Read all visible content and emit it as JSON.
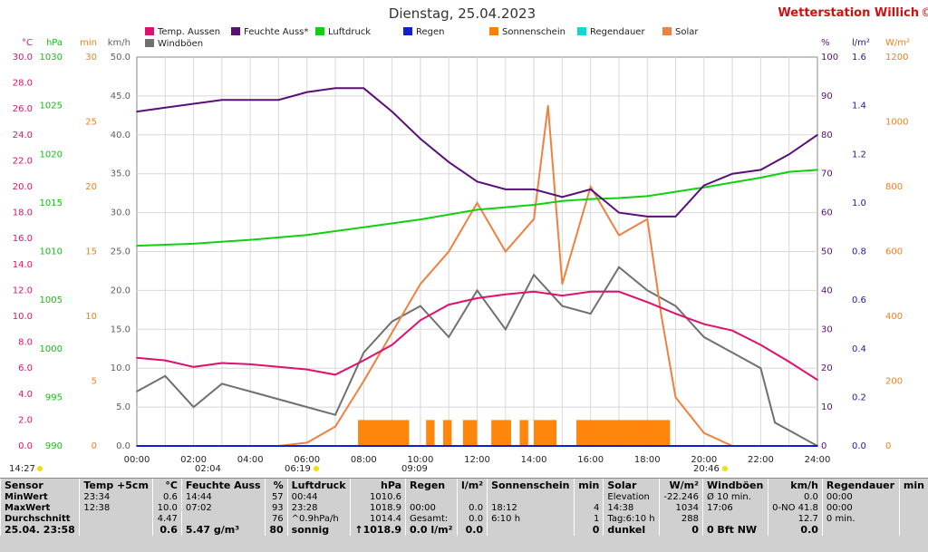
{
  "header": {
    "date_title": "Dienstag, 25.04.2023",
    "station_name": "Wetterstation Willich",
    "station_suffix": "©"
  },
  "axes": {
    "left": [
      {
        "unit": "°C",
        "color": "#e0106e",
        "ticks": [
          "30.0",
          "28.0",
          "26.0",
          "24.0",
          "22.0",
          "20.0",
          "18.0",
          "16.0",
          "14.0",
          "12.0",
          "10.0",
          "8.0",
          "6.0",
          "4.0",
          "2.0",
          "0.0"
        ]
      },
      {
        "unit": "hPa",
        "color": "#10c010",
        "ticks": [
          "1030",
          "1025",
          "1020",
          "1015",
          "1010",
          "1005",
          "1000",
          "995",
          "990"
        ]
      },
      {
        "unit": "min",
        "color": "#f08020",
        "ticks": [
          "30",
          "25",
          "20",
          "15",
          "10",
          "5",
          "0"
        ]
      },
      {
        "unit": "km/h",
        "color": "#606060",
        "ticks": [
          "50.0",
          "45.0",
          "40.0",
          "35.0",
          "30.0",
          "25.0",
          "20.0",
          "15.0",
          "10.0",
          "5.0",
          "0.0"
        ]
      }
    ],
    "right": [
      {
        "unit": "%",
        "color": "#5a1078",
        "ticks": [
          "100",
          "90",
          "80",
          "70",
          "60",
          "50",
          "40",
          "30",
          "20",
          "10",
          "0"
        ]
      },
      {
        "unit": "l/m²",
        "color": "#2020a0",
        "ticks": [
          "1.6",
          "1.4",
          "1.2",
          "1.0",
          "0.8",
          "0.6",
          "0.4",
          "0.2",
          "0.0"
        ]
      },
      {
        "unit": "W/m²",
        "color": "#f08020",
        "ticks": [
          "1200",
          "1000",
          "800",
          "600",
          "400",
          "200",
          "0"
        ]
      }
    ],
    "x_ticks": [
      "00:00",
      "02:00",
      "04:00",
      "06:00",
      "08:00",
      "10:00",
      "12:00",
      "14:00",
      "16:00",
      "18:00",
      "20:00",
      "22:00",
      "24:00"
    ]
  },
  "legend": [
    {
      "label": "Temp. Aussen",
      "color": "#e0106e"
    },
    {
      "label": "Feuchte Auss*",
      "color": "#5a1078"
    },
    {
      "label": "Luftdruck",
      "color": "#10d010"
    },
    {
      "label": "Regen",
      "color": "#1020d0"
    },
    {
      "label": "Sonnenschein",
      "color": "#ff8000"
    },
    {
      "label": "Regendauer",
      "color": "#10d8d8"
    },
    {
      "label": "Solar",
      "color": "#f08040"
    },
    {
      "label": "Windböen",
      "color": "#707070"
    }
  ],
  "sun_markers": {
    "moonrise": "14:27",
    "moonset": "02:04",
    "sunrise": "06:19",
    "solar_noon": "09:09",
    "sunset": "20:46"
  },
  "chart_data": {
    "type": "line",
    "x_unit": "hour",
    "x_range": [
      0,
      24
    ],
    "series": [
      {
        "name": "Temp. Aussen",
        "unit": "°C",
        "ylim": [
          0,
          30
        ],
        "color": "#e0106e",
        "x": [
          0,
          1,
          2,
          3,
          4,
          5,
          6,
          7,
          8,
          9,
          10,
          11,
          12,
          13,
          14,
          15,
          16,
          17,
          18,
          19,
          20,
          21,
          22,
          23,
          24
        ],
        "y": [
          6.8,
          6.6,
          6.1,
          6.4,
          6.3,
          6.1,
          5.9,
          5.5,
          6.6,
          7.8,
          9.7,
          10.9,
          11.4,
          11.7,
          11.9,
          11.6,
          11.9,
          11.9,
          11.1,
          10.2,
          9.4,
          8.9,
          7.8,
          6.5,
          5.1
        ]
      },
      {
        "name": "Feuchte Auss*",
        "unit": "%",
        "ylim": [
          0,
          100
        ],
        "color": "#5a1078",
        "x": [
          0,
          1,
          2,
          3,
          4,
          5,
          6,
          7,
          8,
          9,
          10,
          11,
          12,
          13,
          14,
          15,
          16,
          17,
          18,
          19,
          20,
          21,
          22,
          23,
          24
        ],
        "y": [
          86,
          87,
          88,
          89,
          89,
          89,
          91,
          92,
          92,
          86,
          79,
          73,
          68,
          66,
          66,
          64,
          66,
          60,
          59,
          59,
          67,
          70,
          71,
          75,
          80
        ]
      },
      {
        "name": "Luftdruck",
        "unit": "hPa",
        "ylim": [
          990,
          1030
        ],
        "color": "#10d010",
        "x": [
          0,
          2,
          4,
          6,
          8,
          10,
          12,
          14,
          15,
          16,
          17,
          18,
          20,
          22,
          23,
          24
        ],
        "y": [
          1010.6,
          1010.8,
          1011.2,
          1011.7,
          1012.5,
          1013.3,
          1014.3,
          1014.8,
          1015.2,
          1015.4,
          1015.5,
          1015.7,
          1016.6,
          1017.6,
          1018.2,
          1018.4
        ]
      },
      {
        "name": "Windböen",
        "unit": "km/h",
        "ylim": [
          0,
          50
        ],
        "color": "#707070",
        "x": [
          0,
          1,
          2,
          3,
          4,
          5,
          6,
          7,
          8,
          9,
          10,
          11,
          12,
          13,
          14,
          15,
          16,
          17,
          18,
          19,
          20,
          21,
          22,
          22.5,
          23,
          24
        ],
        "y": [
          7,
          9,
          5,
          8,
          7,
          6,
          5,
          4,
          12,
          16,
          18,
          14,
          20,
          15,
          22,
          18,
          17,
          23,
          20,
          18,
          14,
          12,
          10,
          3,
          2,
          0
        ]
      },
      {
        "name": "Solar",
        "unit": "W/m²",
        "ylim": [
          0,
          1200
        ],
        "color": "#f08040",
        "x": [
          0,
          5,
          6,
          7,
          8,
          9,
          10,
          11,
          12,
          13,
          14,
          14.5,
          15,
          16,
          17,
          18,
          18.5,
          19,
          20,
          21,
          24
        ],
        "y": [
          0,
          0,
          10,
          60,
          200,
          350,
          500,
          600,
          750,
          600,
          700,
          1050,
          500,
          800,
          650,
          700,
          400,
          150,
          40,
          0,
          0
        ]
      },
      {
        "name": "Sonnenschein",
        "unit": "min",
        "ylim": [
          0,
          30
        ],
        "color": "#ff8000",
        "blocks": [
          [
            7.8,
            9.6
          ],
          [
            10.2,
            10.5
          ],
          [
            10.8,
            11.1
          ],
          [
            11.5,
            12.0
          ],
          [
            12.5,
            13.2
          ],
          [
            13.5,
            13.8
          ],
          [
            14.0,
            14.8
          ],
          [
            15.5,
            18.8
          ]
        ],
        "value": 2
      },
      {
        "name": "Regen",
        "unit": "l/m²",
        "ylim": [
          0,
          1.6
        ],
        "color": "#1020d0",
        "x": [
          0,
          24
        ],
        "y": [
          0,
          0
        ]
      }
    ]
  },
  "stats": {
    "headers": [
      "Sensor",
      "Temp +5cm",
      "°C",
      "Feuchte Auss",
      "%",
      "Luftdruck",
      "hPa",
      "Regen",
      "l/m²",
      "Sonnenschein",
      "min",
      "Solar",
      "W/m²",
      "Windböen",
      "km/h",
      "Regendauer",
      "min"
    ],
    "rows": [
      [
        "MinWert",
        "23:34",
        "0.6",
        "14:44",
        "57",
        "00:44",
        "1010.6",
        "",
        "",
        "",
        "",
        "Elevation",
        "-22.246",
        "Ø 10 min.",
        "0.0",
        "00:00",
        ""
      ],
      [
        "MaxWert",
        "12:38",
        "10.0",
        "07:02",
        "93",
        "23:28",
        "1018.9",
        "00:00",
        "0.0",
        "18:12",
        "4",
        "14:38",
        "1034",
        "17:06",
        "0-NO 41.8",
        "00:00",
        ""
      ],
      [
        "Durchschnitt",
        "",
        "4.47",
        "",
        "76",
        "^0.9hPa/h",
        "1014.4",
        "Gesamt:",
        "0.0",
        "6:10 h",
        "1",
        "Tag:6:10 h",
        "288",
        "",
        "12.7",
        "0 min.",
        ""
      ],
      [
        "25.04. 23:58",
        "",
        "0.6",
        "5.47 g/m³",
        "80",
        "sonnig",
        "↑1018.9",
        "0.0 l/m²",
        "0.0",
        "",
        "0",
        "dunkel",
        "0",
        "0 Bft NW",
        "0.0",
        "",
        ""
      ]
    ]
  }
}
